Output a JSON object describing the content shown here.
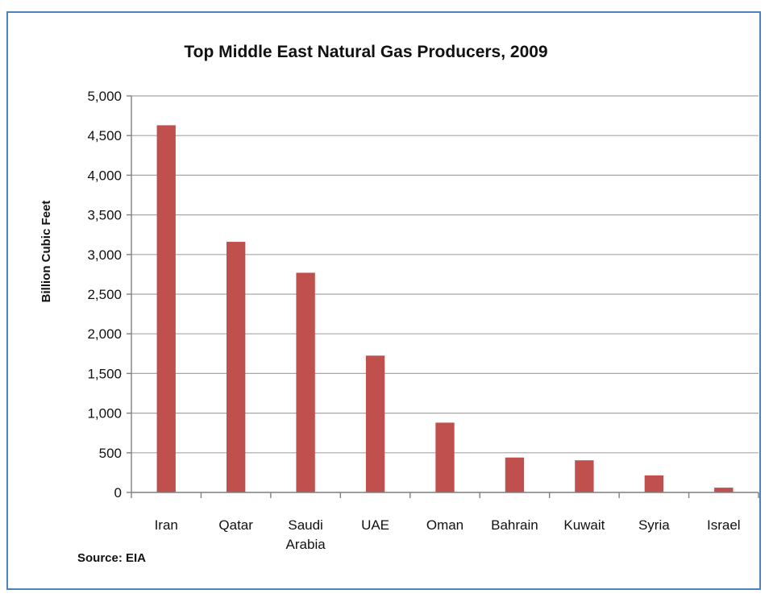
{
  "chart_data": {
    "type": "bar",
    "title": "Top Middle East Natural Gas Producers, 2009",
    "ylabel": "Billion Cubic Feet",
    "xlabel": "",
    "categories": [
      [
        "Iran"
      ],
      [
        "Qatar"
      ],
      [
        "Saudi",
        "Arabia"
      ],
      [
        "UAE"
      ],
      [
        "Oman"
      ],
      [
        "Bahrain"
      ],
      [
        "Kuwait"
      ],
      [
        "Syria"
      ],
      [
        "Israel"
      ]
    ],
    "values": [
      4630,
      3160,
      2770,
      1725,
      880,
      440,
      405,
      215,
      60
    ],
    "ylim": [
      0,
      5000
    ],
    "yticks": [
      "0",
      "500",
      "1,000",
      "1,500",
      "2,000",
      "2,500",
      "3,000",
      "3,500",
      "4,000",
      "4,500",
      "5,000"
    ],
    "ytick_values": [
      0,
      500,
      1000,
      1500,
      2000,
      2500,
      3000,
      3500,
      4000,
      4500,
      5000
    ],
    "grid": true,
    "bar_color": "#c0504d",
    "source": "Source: EIA"
  }
}
